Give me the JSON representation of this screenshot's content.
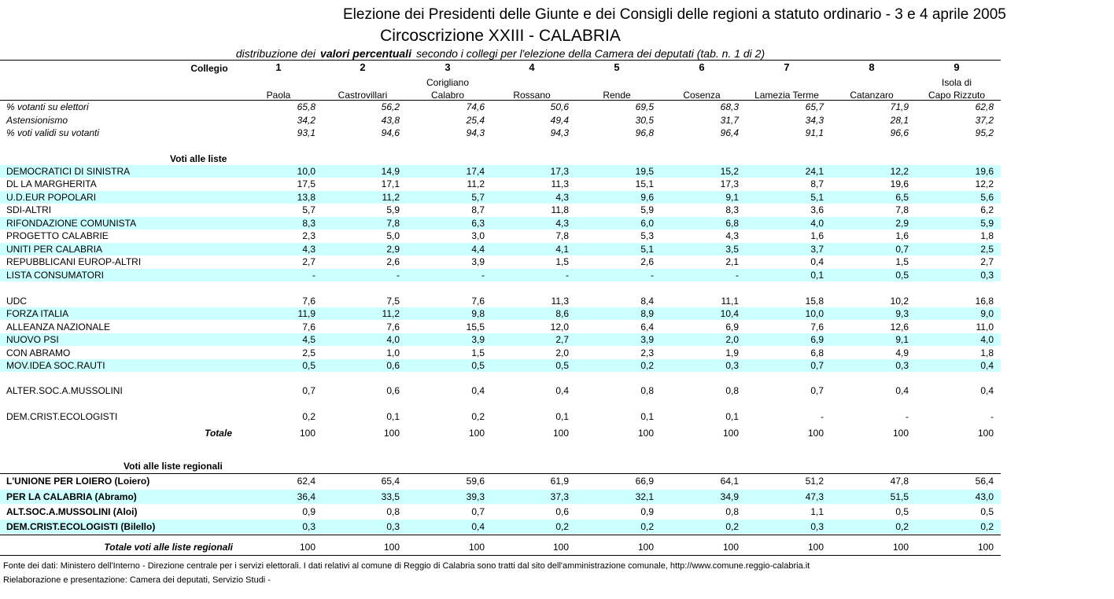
{
  "header": {
    "title": "Elezione dei Presidenti delle Giunte e dei Consigli delle regioni a statuto ordinario - 3 e 4 aprile 2005",
    "subtitle": "Circoscrizione XXIII - CALABRIA",
    "caption": [
      "distribuzione dei",
      "valori percentuali",
      "secondo i collegi per l'elezione della Camera dei deputati (tab. n. 1 di 2)"
    ]
  },
  "table": {
    "column_label": "Collegio",
    "columns": [
      {
        "number": "1",
        "name": [
          "Paola"
        ]
      },
      {
        "number": "2",
        "name": [
          "Castrovillari"
        ]
      },
      {
        "number": "3",
        "name": [
          "Corigliano",
          "Calabro"
        ]
      },
      {
        "number": "4",
        "name": [
          "Rossano"
        ]
      },
      {
        "number": "5",
        "name": [
          "Rende"
        ]
      },
      {
        "number": "6",
        "name": [
          "Cosenza"
        ]
      },
      {
        "number": "7",
        "name": [
          "Lamezia Terme"
        ]
      },
      {
        "number": "8",
        "name": [
          "Catanzaro"
        ]
      },
      {
        "number": "9",
        "name": [
          "Isola di",
          "Capo Rizzuto"
        ]
      }
    ],
    "stats": [
      {
        "label": "% votanti su elettori",
        "values": [
          "65,8",
          "56,2",
          "74,6",
          "50,6",
          "69,5",
          "68,3",
          "65,7",
          "71,9",
          "62,8"
        ]
      },
      {
        "label": "Astensionismo",
        "values": [
          "34,2",
          "43,8",
          "25,4",
          "49,4",
          "30,5",
          "31,7",
          "34,3",
          "28,1",
          "37,2"
        ]
      },
      {
        "label": "% voti validi su votanti",
        "values": [
          "93,1",
          "94,6",
          "94,3",
          "94,3",
          "96,8",
          "96,4",
          "91,1",
          "96,6",
          "95,2"
        ]
      }
    ],
    "lists_heading": "Voti alle liste",
    "list_blocks": [
      [
        {
          "label": "DEMOCRATICI DI SINISTRA",
          "values": [
            "10,0",
            "14,9",
            "17,4",
            "17,3",
            "19,5",
            "15,2",
            "24,1",
            "12,2",
            "19,6"
          ]
        },
        {
          "label": "DL LA MARGHERITA",
          "values": [
            "17,5",
            "17,1",
            "11,2",
            "11,3",
            "15,1",
            "17,3",
            "8,7",
            "19,6",
            "12,2"
          ]
        },
        {
          "label": "U.D.EUR POPOLARI",
          "values": [
            "13,8",
            "11,2",
            "5,7",
            "4,3",
            "9,6",
            "9,1",
            "5,1",
            "6,5",
            "5,6"
          ]
        },
        {
          "label": "SDI-ALTRI",
          "values": [
            "5,7",
            "5,9",
            "8,7",
            "11,8",
            "5,9",
            "8,3",
            "3,6",
            "7,8",
            "6,2"
          ]
        },
        {
          "label": "RIFONDAZIONE COMUNISTA",
          "values": [
            "8,3",
            "7,8",
            "6,3",
            "4,3",
            "6,0",
            "6,8",
            "4,0",
            "2,9",
            "5,9"
          ]
        },
        {
          "label": "PROGETTO CALABRIE",
          "values": [
            "2,3",
            "5,0",
            "3,0",
            "7,8",
            "5,3",
            "4,3",
            "1,6",
            "1,6",
            "1,8"
          ]
        },
        {
          "label": "UNITI PER CALABRIA",
          "values": [
            "4,3",
            "2,9",
            "4,4",
            "4,1",
            "5,1",
            "3,5",
            "3,7",
            "0,7",
            "2,5"
          ]
        },
        {
          "label": "REPUBBLICANI EUROP-ALTRI",
          "values": [
            "2,7",
            "2,6",
            "3,9",
            "1,5",
            "2,6",
            "2,1",
            "0,4",
            "1,5",
            "2,7"
          ]
        },
        {
          "label": "LISTA CONSUMATORI",
          "values": [
            "-",
            "-",
            "-",
            "-",
            "-",
            "-",
            "0,1",
            "0,5",
            "0,3"
          ]
        }
      ],
      [
        {
          "label": "UDC",
          "values": [
            "7,6",
            "7,5",
            "7,6",
            "11,3",
            "8,4",
            "11,1",
            "15,8",
            "10,2",
            "16,8"
          ]
        },
        {
          "label": "FORZA ITALIA",
          "values": [
            "11,9",
            "11,2",
            "9,8",
            "8,6",
            "8,9",
            "10,4",
            "10,0",
            "9,3",
            "9,0"
          ]
        },
        {
          "label": "ALLEANZA NAZIONALE",
          "values": [
            "7,6",
            "7,6",
            "15,5",
            "12,0",
            "6,4",
            "6,9",
            "7,6",
            "12,6",
            "11,0"
          ]
        },
        {
          "label": "NUOVO PSI",
          "values": [
            "4,5",
            "4,0",
            "3,9",
            "2,7",
            "3,9",
            "2,0",
            "6,9",
            "9,1",
            "4,0"
          ]
        },
        {
          "label": "CON ABRAMO",
          "values": [
            "2,5",
            "1,0",
            "1,5",
            "2,0",
            "2,3",
            "1,9",
            "6,8",
            "4,9",
            "1,8"
          ]
        },
        {
          "label": "MOV.IDEA SOC.RAUTI",
          "values": [
            "0,5",
            "0,6",
            "0,5",
            "0,5",
            "0,2",
            "0,3",
            "0,7",
            "0,3",
            "0,4"
          ]
        }
      ],
      [
        {
          "label": "ALTER.SOC.A.MUSSOLINI",
          "values": [
            "0,7",
            "0,6",
            "0,4",
            "0,4",
            "0,8",
            "0,8",
            "0,7",
            "0,4",
            "0,4"
          ]
        }
      ],
      [
        {
          "label": "DEM.CRIST.ECOLOGISTI",
          "values": [
            "0,2",
            "0,1",
            "0,2",
            "0,1",
            "0,1",
            "0,1",
            "-",
            "-",
            "-"
          ]
        }
      ]
    ],
    "lists_total": {
      "label": "Totale",
      "values": [
        "100",
        "100",
        "100",
        "100",
        "100",
        "100",
        "100",
        "100",
        "100"
      ]
    },
    "regional_heading": "Voti alle liste regionali",
    "regional": [
      {
        "label": "L'UNIONE PER LOIERO (Loiero)",
        "values": [
          "62,4",
          "65,4",
          "59,6",
          "61,9",
          "66,9",
          "64,1",
          "51,2",
          "47,8",
          "56,4"
        ]
      },
      {
        "label": "PER LA CALABRIA (Abramo)",
        "values": [
          "36,4",
          "33,5",
          "39,3",
          "37,3",
          "32,1",
          "34,9",
          "47,3",
          "51,5",
          "43,0"
        ]
      },
      {
        "label": "ALT.SOC.A.MUSSOLINI (Aloi)",
        "values": [
          "0,9",
          "0,8",
          "0,7",
          "0,6",
          "0,9",
          "0,8",
          "1,1",
          "0,5",
          "0,5"
        ]
      },
      {
        "label": "DEM.CRIST.ECOLOGISTI (Bilello)",
        "values": [
          "0,3",
          "0,3",
          "0,4",
          "0,2",
          "0,2",
          "0,2",
          "0,3",
          "0,2",
          "0,2"
        ]
      }
    ],
    "regional_total": {
      "label": "Totale voti alle liste regionali",
      "values": [
        "100",
        "100",
        "100",
        "100",
        "100",
        "100",
        "100",
        "100",
        "100"
      ]
    }
  },
  "footer": [
    "Fonte dei dati: Ministero dell'Interno - Direzione centrale per i servizi elettorali. I dati relativi al comune di Reggio di Calabria sono tratti dal sito dell'amministrazione comunale, http://www.comune.reggio-calabria.it",
    "Rielaborazione e presentazione: Camera dei deputati, Servizio Studi -"
  ]
}
